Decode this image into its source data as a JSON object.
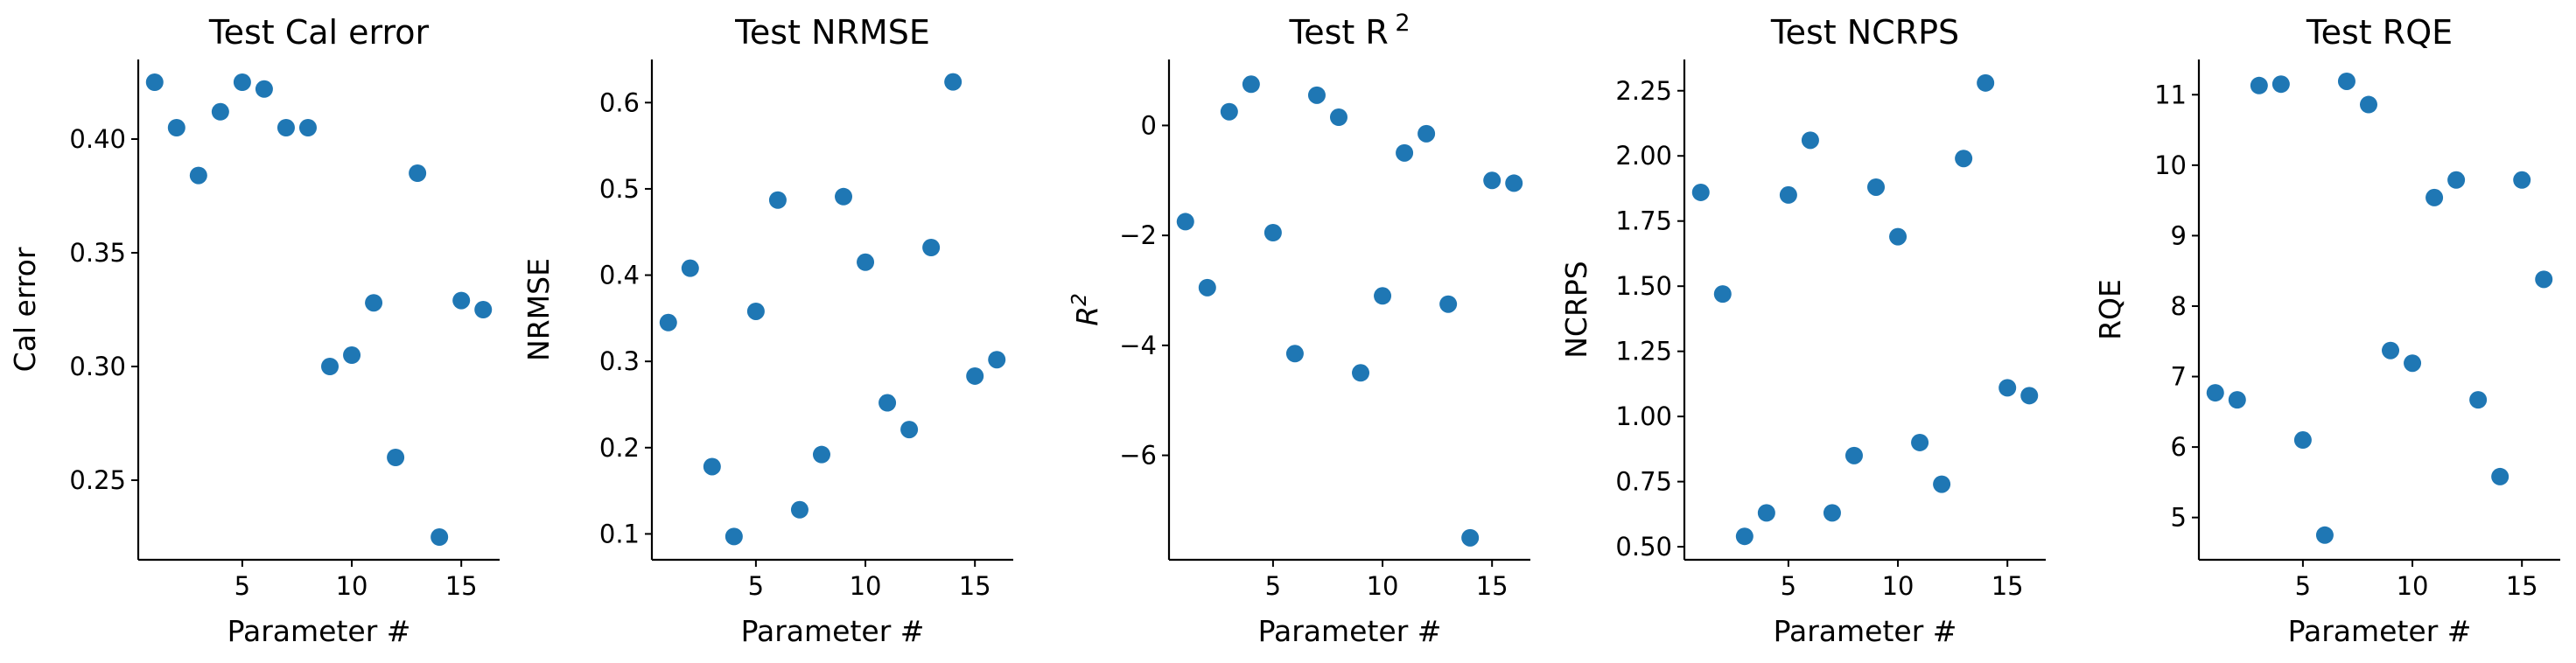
{
  "chart_data": [
    {
      "type": "scatter",
      "title": "Test Cal error",
      "xlabel": "Parameter #",
      "ylabel": "Cal error",
      "color": "#1f77b4",
      "xlim": [
        0.25,
        16.75
      ],
      "ylim": [
        0.215,
        0.435
      ],
      "xticks": [
        5,
        10,
        15
      ],
      "yticks": [
        0.25,
        0.3,
        0.35,
        0.4
      ],
      "ytick_labels": [
        "0.25",
        "0.30",
        "0.35",
        "0.40"
      ],
      "x": [
        1,
        2,
        3,
        4,
        5,
        6,
        7,
        8,
        9,
        10,
        11,
        12,
        13,
        14,
        15,
        16
      ],
      "y": [
        0.425,
        0.405,
        0.384,
        0.412,
        0.425,
        0.422,
        0.405,
        0.405,
        0.3,
        0.305,
        0.328,
        0.26,
        0.385,
        0.225,
        0.329,
        0.325
      ]
    },
    {
      "type": "scatter",
      "title": "Test NRMSE",
      "xlabel": "Parameter #",
      "ylabel": "NRMSE",
      "color": "#1f77b4",
      "xlim": [
        0.25,
        16.75
      ],
      "ylim": [
        0.07,
        0.65
      ],
      "xticks": [
        5,
        10,
        15
      ],
      "yticks": [
        0.1,
        0.2,
        0.3,
        0.4,
        0.5,
        0.6
      ],
      "ytick_labels": [
        "0.1",
        "0.2",
        "0.3",
        "0.4",
        "0.5",
        "0.6"
      ],
      "x": [
        1,
        2,
        3,
        4,
        5,
        6,
        7,
        8,
        9,
        10,
        11,
        12,
        13,
        14,
        15,
        16
      ],
      "y": [
        0.345,
        0.408,
        0.178,
        0.097,
        0.358,
        0.487,
        0.128,
        0.192,
        0.491,
        0.415,
        0.252,
        0.221,
        0.432,
        0.624,
        0.283,
        0.302
      ]
    },
    {
      "type": "scatter",
      "title": "Test R",
      "title_sup": "2",
      "xlabel": "Parameter #",
      "ylabel": "R",
      "ylabel_sup": "2",
      "color": "#1f77b4",
      "xlim": [
        0.25,
        16.75
      ],
      "ylim": [
        -7.9,
        1.2
      ],
      "xticks": [
        5,
        10,
        15
      ],
      "yticks": [
        -6,
        -4,
        -2,
        0
      ],
      "ytick_labels": [
        "−6",
        "−4",
        "−2",
        "0"
      ],
      "x": [
        1,
        2,
        3,
        4,
        5,
        6,
        7,
        8,
        9,
        10,
        11,
        12,
        13,
        14,
        15,
        16
      ],
      "y": [
        -1.75,
        -2.95,
        0.25,
        0.75,
        -1.95,
        -4.15,
        0.55,
        0.15,
        -4.5,
        -3.1,
        -0.5,
        -0.15,
        -3.25,
        -7.5,
        -1.0,
        -1.05
      ]
    },
    {
      "type": "scatter",
      "title": "Test NCRPS",
      "xlabel": "Parameter #",
      "ylabel": "NCRPS",
      "color": "#1f77b4",
      "xlim": [
        0.25,
        16.75
      ],
      "ylim": [
        0.45,
        2.37
      ],
      "xticks": [
        5,
        10,
        15
      ],
      "yticks": [
        0.5,
        0.75,
        1.0,
        1.25,
        1.5,
        1.75,
        2.0,
        2.25
      ],
      "ytick_labels": [
        "0.50",
        "0.75",
        "1.00",
        "1.25",
        "1.50",
        "1.75",
        "2.00",
        "2.25"
      ],
      "x": [
        1,
        2,
        3,
        4,
        5,
        6,
        7,
        8,
        9,
        10,
        11,
        12,
        13,
        14,
        15,
        16
      ],
      "y": [
        1.86,
        1.47,
        0.54,
        0.63,
        1.85,
        2.06,
        0.63,
        0.85,
        1.88,
        1.69,
        0.9,
        0.74,
        1.99,
        2.28,
        1.11,
        1.08
      ]
    },
    {
      "type": "scatter",
      "title": "Test RQE",
      "xlabel": "Parameter #",
      "ylabel": "RQE",
      "color": "#1f77b4",
      "xlim": [
        0.25,
        16.75
      ],
      "ylim": [
        4.4,
        11.5
      ],
      "xticks": [
        5,
        10,
        15
      ],
      "yticks": [
        5,
        6,
        7,
        8,
        9,
        10,
        11
      ],
      "ytick_labels": [
        "5",
        "6",
        "7",
        "8",
        "9",
        "10",
        "11"
      ],
      "x": [
        1,
        2,
        3,
        4,
        5,
        6,
        7,
        8,
        9,
        10,
        11,
        12,
        13,
        14,
        15,
        16
      ],
      "y": [
        6.77,
        6.67,
        11.13,
        11.15,
        6.1,
        4.75,
        11.19,
        10.86,
        7.37,
        7.19,
        9.54,
        9.79,
        6.67,
        5.58,
        9.79,
        8.38
      ]
    }
  ]
}
